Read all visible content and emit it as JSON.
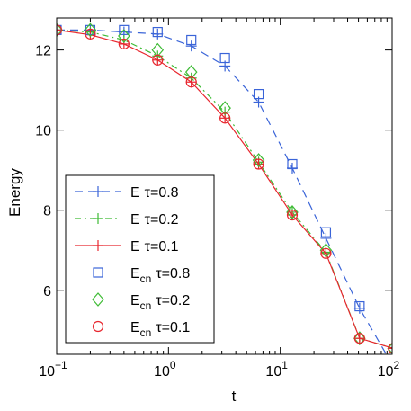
{
  "chart_data": {
    "type": "line",
    "xlabel": "t",
    "ylabel": "Energy",
    "xscale": "log",
    "xlim": [
      0.1,
      100
    ],
    "ylim": [
      4.4,
      12.8
    ],
    "x_ticks": [
      {
        "value": 0.1,
        "base": "10",
        "exp": "−1"
      },
      {
        "value": 1,
        "base": "10",
        "exp": "0"
      },
      {
        "value": 10,
        "base": "10",
        "exp": "1"
      },
      {
        "value": 100,
        "base": "10",
        "exp": "2"
      }
    ],
    "y_ticks": [
      {
        "value": 6,
        "label": "6"
      },
      {
        "value": 8,
        "label": "8"
      },
      {
        "value": 10,
        "label": "10"
      },
      {
        "value": 12,
        "label": "12"
      }
    ],
    "grid": false,
    "legend_position": "bottom-left",
    "series": [
      {
        "name": "E τ=0.8",
        "name_main": "E",
        "name_sub": "",
        "name_rest": "τ=0.8",
        "style": "dashed-plus",
        "color": "#3a64d8",
        "x": [
          0.1,
          0.2,
          0.4,
          0.8,
          1.6,
          3.2,
          6.4,
          12.8,
          25.6,
          51.2,
          102.4
        ],
        "y": [
          12.5,
          12.5,
          12.45,
          12.4,
          12.1,
          11.6,
          10.7,
          9.05,
          7.3,
          5.55,
          4.1
        ]
      },
      {
        "name": "E τ=0.2",
        "name_main": "E",
        "name_sub": "",
        "name_rest": "τ=0.2",
        "style": "dashdot-plus",
        "color": "#3dbb34",
        "x": [
          0.1,
          0.2,
          0.4,
          0.8,
          1.6,
          3.2,
          6.4,
          12.8,
          25.6,
          51.2,
          102.4
        ],
        "y": [
          12.5,
          12.45,
          12.25,
          11.85,
          11.3,
          10.45,
          9.2,
          7.95,
          6.95,
          4.8,
          4.55
        ]
      },
      {
        "name": "E τ=0.1",
        "name_main": "E",
        "name_sub": "",
        "name_rest": "τ=0.1",
        "style": "solid-plus",
        "color": "#e8262e",
        "x": [
          0.1,
          0.2,
          0.4,
          0.8,
          1.6,
          3.2,
          6.4,
          12.8,
          25.6,
          51.2,
          102.4
        ],
        "y": [
          12.5,
          12.38,
          12.15,
          11.75,
          11.2,
          10.3,
          9.15,
          7.88,
          6.92,
          4.8,
          4.55
        ]
      },
      {
        "name": "Ecn τ=0.8",
        "name_main": "E",
        "name_sub": "cn",
        "name_rest": "τ=0.8",
        "style": "square",
        "color": "#3a64d8",
        "x": [
          0.1,
          0.2,
          0.4,
          0.8,
          1.6,
          3.2,
          6.4,
          12.8,
          25.6,
          51.2,
          102.4
        ],
        "y": [
          12.5,
          12.5,
          12.5,
          12.45,
          12.25,
          11.8,
          10.9,
          9.15,
          7.45,
          5.6,
          4.05
        ]
      },
      {
        "name": "Ecn τ=0.2",
        "name_main": "E",
        "name_sub": "cn",
        "name_rest": "τ=0.2",
        "style": "diamond",
        "color": "#3dbb34",
        "x": [
          0.1,
          0.2,
          0.4,
          0.8,
          1.6,
          3.2,
          6.4,
          12.8,
          25.6,
          51.2,
          102.4
        ],
        "y": [
          12.5,
          12.5,
          12.35,
          12.0,
          11.45,
          10.55,
          9.25,
          7.95,
          7.0,
          4.8,
          4.55
        ]
      },
      {
        "name": "Ecn τ=0.1",
        "name_main": "E",
        "name_sub": "cn",
        "name_rest": "τ=0.1",
        "style": "circle",
        "color": "#e8262e",
        "x": [
          0.1,
          0.2,
          0.4,
          0.8,
          1.6,
          3.2,
          6.4,
          12.8,
          25.6,
          51.2,
          102.4
        ],
        "y": [
          12.5,
          12.4,
          12.15,
          11.75,
          11.2,
          10.3,
          9.15,
          7.88,
          6.92,
          4.8,
          4.55
        ]
      }
    ]
  }
}
